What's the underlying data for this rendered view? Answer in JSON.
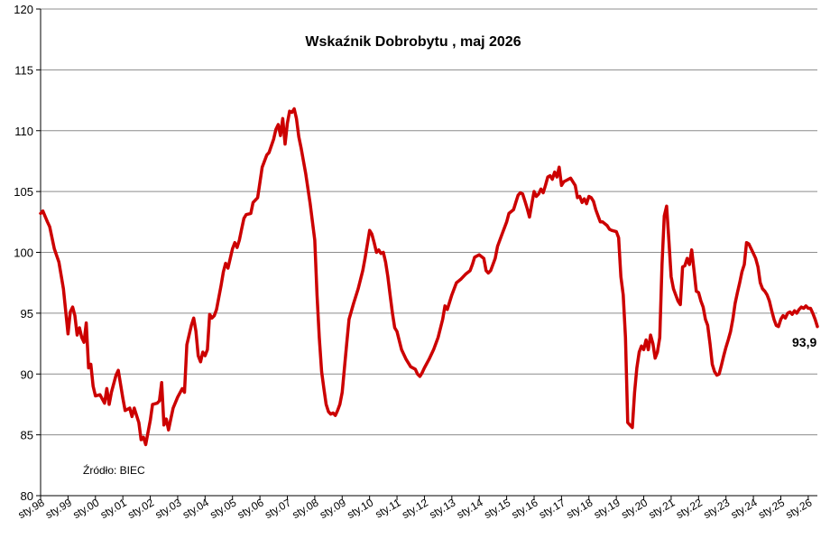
{
  "chart_data": {
    "type": "line",
    "title": "Wskaźnik Dobrobytu , maj 2026",
    "source_note": "Źródło: BIEC",
    "ylim": [
      80,
      120
    ],
    "yticks": [
      80,
      85,
      90,
      95,
      100,
      105,
      110,
      115,
      120
    ],
    "grid": "horizontal",
    "xlim": [
      "1998-01",
      "2026-05"
    ],
    "xtick_labels": [
      "sty.98",
      "sty.99",
      "sty.00",
      "sty.01",
      "sty.02",
      "sty.03",
      "sty.04",
      "sty.05",
      "sty.06",
      "sty.07",
      "sty.08",
      "sty.09",
      "sty.10",
      "sty.11",
      "sty.12",
      "sty.13",
      "sty.14",
      "sty.15",
      "sty.16",
      "sty.17",
      "sty.18",
      "sty.19",
      "sty.20",
      "sty.21",
      "sty.22",
      "sty.23",
      "sty.24",
      "sty.25",
      "sty.26"
    ],
    "last_value_label": "93,9",
    "line_color": "#cc0000",
    "series": [
      {
        "points": [
          [
            "1998-01",
            103.2
          ],
          [
            "1998-02",
            103.4
          ],
          [
            "1998-04",
            102.5
          ],
          [
            "1998-05",
            102.1
          ],
          [
            "1998-07",
            100.3
          ],
          [
            "1998-09",
            99.2
          ],
          [
            "1998-11",
            97.0
          ],
          [
            "1999-01",
            93.3
          ],
          [
            "1999-02",
            95.1
          ],
          [
            "1999-03",
            95.5
          ],
          [
            "1999-04",
            94.8
          ],
          [
            "1999-05",
            93.2
          ],
          [
            "1999-06",
            93.8
          ],
          [
            "1999-07",
            93.0
          ],
          [
            "1999-08",
            92.6
          ],
          [
            "1999-09",
            94.2
          ],
          [
            "1999-10",
            90.5
          ],
          [
            "1999-11",
            90.8
          ],
          [
            "1999-12",
            89.0
          ],
          [
            "2000-01",
            88.2
          ],
          [
            "2000-03",
            88.3
          ],
          [
            "2000-05",
            87.6
          ],
          [
            "2000-06",
            88.8
          ],
          [
            "2000-07",
            87.5
          ],
          [
            "2000-08",
            88.5
          ],
          [
            "2000-10",
            89.9
          ],
          [
            "2000-11",
            90.3
          ],
          [
            "2001-01",
            88.0
          ],
          [
            "2001-02",
            87.0
          ],
          [
            "2001-04",
            87.2
          ],
          [
            "2001-05",
            86.5
          ],
          [
            "2001-06",
            87.2
          ],
          [
            "2001-08",
            86.0
          ],
          [
            "2001-09",
            84.6
          ],
          [
            "2001-10",
            84.8
          ],
          [
            "2001-11",
            84.2
          ],
          [
            "2002-01",
            86.2
          ],
          [
            "2002-02",
            87.5
          ],
          [
            "2002-04",
            87.6
          ],
          [
            "2002-05",
            87.8
          ],
          [
            "2002-06",
            89.3
          ],
          [
            "2002-07",
            85.8
          ],
          [
            "2002-08",
            86.3
          ],
          [
            "2002-09",
            85.4
          ],
          [
            "2002-10",
            86.3
          ],
          [
            "2002-11",
            87.2
          ],
          [
            "2003-01",
            88.1
          ],
          [
            "2003-03",
            88.8
          ],
          [
            "2003-04",
            88.5
          ],
          [
            "2003-05",
            92.4
          ],
          [
            "2003-06",
            93.2
          ],
          [
            "2003-07",
            94.0
          ],
          [
            "2003-08",
            94.6
          ],
          [
            "2003-09",
            93.5
          ],
          [
            "2003-10",
            91.5
          ],
          [
            "2003-11",
            91.0
          ],
          [
            "2003-12",
            91.8
          ],
          [
            "2004-01",
            91.5
          ],
          [
            "2004-02",
            92.0
          ],
          [
            "2004-03",
            94.9
          ],
          [
            "2004-04",
            94.6
          ],
          [
            "2004-05",
            94.8
          ],
          [
            "2004-06",
            95.3
          ],
          [
            "2004-08",
            97.3
          ],
          [
            "2004-09",
            98.4
          ],
          [
            "2004-10",
            99.1
          ],
          [
            "2004-11",
            98.7
          ],
          [
            "2005-01",
            100.3
          ],
          [
            "2005-02",
            100.8
          ],
          [
            "2005-03",
            100.4
          ],
          [
            "2005-04",
            101.0
          ],
          [
            "2005-05",
            101.9
          ],
          [
            "2005-06",
            102.8
          ],
          [
            "2005-07",
            103.1
          ],
          [
            "2005-09",
            103.2
          ],
          [
            "2005-10",
            104.1
          ],
          [
            "2005-12",
            104.5
          ],
          [
            "2006-02",
            107.0
          ],
          [
            "2006-04",
            108.0
          ],
          [
            "2006-05",
            108.2
          ],
          [
            "2006-07",
            109.3
          ],
          [
            "2006-08",
            110.1
          ],
          [
            "2006-09",
            110.5
          ],
          [
            "2006-10",
            109.6
          ],
          [
            "2006-11",
            111.0
          ],
          [
            "2006-12",
            108.9
          ],
          [
            "2007-01",
            110.6
          ],
          [
            "2007-02",
            111.6
          ],
          [
            "2007-03",
            111.5
          ],
          [
            "2007-04",
            111.8
          ],
          [
            "2007-05",
            111.0
          ],
          [
            "2007-06",
            109.5
          ],
          [
            "2007-07",
            108.6
          ],
          [
            "2007-09",
            106.5
          ],
          [
            "2007-11",
            104.0
          ],
          [
            "2008-01",
            101.0
          ],
          [
            "2008-02",
            96.5
          ],
          [
            "2008-03",
            93.0
          ],
          [
            "2008-04",
            90.2
          ],
          [
            "2008-05",
            88.8
          ],
          [
            "2008-06",
            87.5
          ],
          [
            "2008-07",
            86.9
          ],
          [
            "2008-08",
            86.7
          ],
          [
            "2008-09",
            86.8
          ],
          [
            "2008-10",
            86.6
          ],
          [
            "2008-11",
            87.0
          ],
          [
            "2008-12",
            87.5
          ],
          [
            "2009-01",
            88.5
          ],
          [
            "2009-02",
            90.5
          ],
          [
            "2009-03",
            92.5
          ],
          [
            "2009-04",
            94.5
          ],
          [
            "2009-06",
            95.8
          ],
          [
            "2009-08",
            97.0
          ],
          [
            "2009-10",
            98.5
          ],
          [
            "2009-11",
            99.5
          ],
          [
            "2010-01",
            101.8
          ],
          [
            "2010-02",
            101.5
          ],
          [
            "2010-03",
            100.8
          ],
          [
            "2010-04",
            100.0
          ],
          [
            "2010-05",
            100.2
          ],
          [
            "2010-06",
            99.9
          ],
          [
            "2010-07",
            100.0
          ],
          [
            "2010-08",
            99.2
          ],
          [
            "2010-09",
            98.0
          ],
          [
            "2010-10",
            96.5
          ],
          [
            "2010-11",
            95.0
          ],
          [
            "2010-12",
            93.8
          ],
          [
            "2011-01",
            93.5
          ],
          [
            "2011-03",
            92.0
          ],
          [
            "2011-05",
            91.2
          ],
          [
            "2011-07",
            90.6
          ],
          [
            "2011-09",
            90.4
          ],
          [
            "2011-10",
            90.0
          ],
          [
            "2011-11",
            89.8
          ],
          [
            "2011-12",
            90.1
          ],
          [
            "2012-01",
            90.5
          ],
          [
            "2012-03",
            91.2
          ],
          [
            "2012-05",
            92.0
          ],
          [
            "2012-07",
            93.0
          ],
          [
            "2012-09",
            94.5
          ],
          [
            "2012-10",
            95.6
          ],
          [
            "2012-11",
            95.3
          ],
          [
            "2013-01",
            96.5
          ],
          [
            "2013-03",
            97.5
          ],
          [
            "2013-05",
            97.8
          ],
          [
            "2013-07",
            98.2
          ],
          [
            "2013-09",
            98.5
          ],
          [
            "2013-10",
            99.0
          ],
          [
            "2013-11",
            99.6
          ],
          [
            "2014-01",
            99.8
          ],
          [
            "2014-03",
            99.5
          ],
          [
            "2014-04",
            98.5
          ],
          [
            "2014-05",
            98.3
          ],
          [
            "2014-06",
            98.5
          ],
          [
            "2014-08",
            99.5
          ],
          [
            "2014-09",
            100.5
          ],
          [
            "2014-11",
            101.5
          ],
          [
            "2015-01",
            102.5
          ],
          [
            "2015-02",
            103.2
          ],
          [
            "2015-04",
            103.5
          ],
          [
            "2015-05",
            104.1
          ],
          [
            "2015-06",
            104.7
          ],
          [
            "2015-07",
            104.9
          ],
          [
            "2015-08",
            104.8
          ],
          [
            "2015-09",
            104.2
          ],
          [
            "2015-10",
            103.6
          ],
          [
            "2015-11",
            102.9
          ],
          [
            "2015-12",
            104.0
          ],
          [
            "2016-01",
            105.0
          ],
          [
            "2016-02",
            104.6
          ],
          [
            "2016-03",
            104.8
          ],
          [
            "2016-04",
            105.2
          ],
          [
            "2016-05",
            104.9
          ],
          [
            "2016-06",
            105.5
          ],
          [
            "2016-07",
            106.2
          ],
          [
            "2016-08",
            106.3
          ],
          [
            "2016-09",
            106.0
          ],
          [
            "2016-10",
            106.6
          ],
          [
            "2016-11",
            106.2
          ],
          [
            "2016-12",
            107.0
          ],
          [
            "2017-01",
            105.5
          ],
          [
            "2017-02",
            105.8
          ],
          [
            "2017-03",
            105.9
          ],
          [
            "2017-05",
            106.1
          ],
          [
            "2017-06",
            105.8
          ],
          [
            "2017-07",
            105.5
          ],
          [
            "2017-08",
            104.5
          ],
          [
            "2017-09",
            104.6
          ],
          [
            "2017-10",
            104.1
          ],
          [
            "2017-11",
            104.4
          ],
          [
            "2017-12",
            104.0
          ],
          [
            "2018-01",
            104.6
          ],
          [
            "2018-02",
            104.5
          ],
          [
            "2018-03",
            104.2
          ],
          [
            "2018-04",
            103.5
          ],
          [
            "2018-05",
            103.0
          ],
          [
            "2018-06",
            102.5
          ],
          [
            "2018-07",
            102.5
          ],
          [
            "2018-09",
            102.2
          ],
          [
            "2018-10",
            101.9
          ],
          [
            "2018-11",
            101.8
          ],
          [
            "2019-01",
            101.7
          ],
          [
            "2019-02",
            101.2
          ],
          [
            "2019-03",
            98.0
          ],
          [
            "2019-04",
            96.5
          ],
          [
            "2019-05",
            93.0
          ],
          [
            "2019-06",
            86.0
          ],
          [
            "2019-07",
            85.8
          ],
          [
            "2019-08",
            85.6
          ],
          [
            "2019-09",
            88.5
          ],
          [
            "2019-10",
            90.5
          ],
          [
            "2019-11",
            91.8
          ],
          [
            "2019-12",
            92.3
          ],
          [
            "2020-01",
            92.0
          ],
          [
            "2020-02",
            92.8
          ],
          [
            "2020-03",
            92.0
          ],
          [
            "2020-04",
            93.2
          ],
          [
            "2020-05",
            92.5
          ],
          [
            "2020-06",
            91.3
          ],
          [
            "2020-07",
            91.8
          ],
          [
            "2020-08",
            93.0
          ],
          [
            "2020-09",
            99.0
          ],
          [
            "2020-10",
            103.0
          ],
          [
            "2020-11",
            103.8
          ],
          [
            "2020-12",
            101.0
          ],
          [
            "2021-01",
            98.0
          ],
          [
            "2021-02",
            97.0
          ],
          [
            "2021-03",
            96.5
          ],
          [
            "2021-04",
            96.0
          ],
          [
            "2021-05",
            95.7
          ],
          [
            "2021-06",
            98.8
          ],
          [
            "2021-07",
            98.9
          ],
          [
            "2021-08",
            99.5
          ],
          [
            "2021-09",
            99.0
          ],
          [
            "2021-10",
            100.2
          ],
          [
            "2021-11",
            98.5
          ],
          [
            "2021-12",
            96.8
          ],
          [
            "2022-01",
            96.7
          ],
          [
            "2022-02",
            96.0
          ],
          [
            "2022-03",
            95.5
          ],
          [
            "2022-04",
            94.5
          ],
          [
            "2022-05",
            94.0
          ],
          [
            "2022-06",
            92.5
          ],
          [
            "2022-07",
            90.8
          ],
          [
            "2022-08",
            90.2
          ],
          [
            "2022-09",
            89.9
          ],
          [
            "2022-10",
            90.0
          ],
          [
            "2022-11",
            90.7
          ],
          [
            "2022-12",
            91.5
          ],
          [
            "2023-01",
            92.2
          ],
          [
            "2023-02",
            92.8
          ],
          [
            "2023-03",
            93.5
          ],
          [
            "2023-04",
            94.5
          ],
          [
            "2023-05",
            95.8
          ],
          [
            "2023-06",
            96.7
          ],
          [
            "2023-07",
            97.5
          ],
          [
            "2023-08",
            98.4
          ],
          [
            "2023-09",
            99.0
          ],
          [
            "2023-10",
            100.8
          ],
          [
            "2023-11",
            100.7
          ],
          [
            "2023-12",
            100.3
          ],
          [
            "2024-01",
            99.9
          ],
          [
            "2024-02",
            99.5
          ],
          [
            "2024-03",
            98.8
          ],
          [
            "2024-04",
            97.5
          ],
          [
            "2024-05",
            97.0
          ],
          [
            "2024-06",
            96.8
          ],
          [
            "2024-07",
            96.5
          ],
          [
            "2024-08",
            96.0
          ],
          [
            "2024-09",
            95.2
          ],
          [
            "2024-10",
            94.5
          ],
          [
            "2024-11",
            94.0
          ],
          [
            "2024-12",
            93.9
          ],
          [
            "2025-01",
            94.5
          ],
          [
            "2025-02",
            94.8
          ],
          [
            "2025-03",
            94.6
          ],
          [
            "2025-04",
            95.0
          ],
          [
            "2025-05",
            95.1
          ],
          [
            "2025-06",
            94.9
          ],
          [
            "2025-07",
            95.2
          ],
          [
            "2025-08",
            95.0
          ],
          [
            "2025-09",
            95.3
          ],
          [
            "2025-10",
            95.5
          ],
          [
            "2025-11",
            95.4
          ],
          [
            "2025-12",
            95.6
          ],
          [
            "2026-01",
            95.4
          ],
          [
            "2026-02",
            95.4
          ],
          [
            "2026-03",
            95.0
          ],
          [
            "2026-04",
            94.5
          ],
          [
            "2026-05",
            93.9
          ]
        ]
      }
    ]
  }
}
